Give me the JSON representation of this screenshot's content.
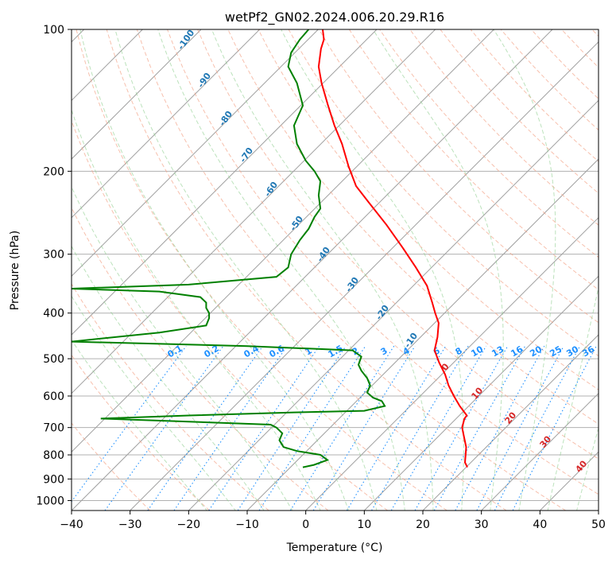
{
  "chart_data": {
    "type": "line",
    "title": "wetPf2_GN02.2024.006.20.29.R16",
    "xlabel": "Temperature (°C)",
    "ylabel": "Pressure (hPa)",
    "xlim": [
      -40,
      50
    ],
    "ylim": [
      1050,
      100
    ],
    "y_scale": "log",
    "x_ticks": [
      -40,
      -30,
      -20,
      -10,
      0,
      10,
      20,
      30,
      40,
      50
    ],
    "y_ticks": [
      100,
      200,
      300,
      400,
      500,
      600,
      700,
      800,
      900,
      1000
    ],
    "grid": true,
    "series": [
      {
        "color": "#ff0000",
        "points": [
          [
            27.6,
            850
          ],
          [
            27.2,
            830
          ],
          [
            27.3,
            800
          ],
          [
            27.4,
            770
          ],
          [
            27.0,
            730
          ],
          [
            26.7,
            700
          ],
          [
            27.1,
            670
          ],
          [
            27.5,
            660
          ],
          [
            26.3,
            630
          ],
          [
            25.3,
            600
          ],
          [
            24.4,
            570
          ],
          [
            23.8,
            540
          ],
          [
            22.8,
            510
          ],
          [
            22.0,
            480
          ],
          [
            22.5,
            450
          ],
          [
            22.7,
            420
          ],
          [
            22.1,
            400
          ],
          [
            21.6,
            380
          ],
          [
            20.7,
            350
          ],
          [
            18.8,
            320
          ],
          [
            16.5,
            290
          ],
          [
            13.8,
            260
          ],
          [
            11.0,
            235
          ],
          [
            8.6,
            215
          ],
          [
            7.3,
            195
          ],
          [
            6.2,
            175
          ],
          [
            4.9,
            160
          ],
          [
            3.8,
            145
          ],
          [
            2.7,
            130
          ],
          [
            2.2,
            120
          ],
          [
            2.6,
            110
          ],
          [
            3.1,
            105
          ],
          [
            2.9,
            100
          ]
        ],
        "kind": "temperature"
      },
      {
        "color": "#008000",
        "points": [
          [
            -0.5,
            850
          ],
          [
            1.4,
            840
          ],
          [
            3.7,
            820
          ],
          [
            2.5,
            800
          ],
          [
            -1.5,
            785
          ],
          [
            -3.8,
            770
          ],
          [
            -4.5,
            745
          ],
          [
            -4.0,
            720
          ],
          [
            -5.0,
            700
          ],
          [
            -6.0,
            690
          ],
          [
            -20.0,
            680
          ],
          [
            -35.0,
            670
          ],
          [
            -20.0,
            660
          ],
          [
            -2.0,
            650
          ],
          [
            10.0,
            645
          ],
          [
            13.5,
            630
          ],
          [
            13.0,
            615
          ],
          [
            11.5,
            605
          ],
          [
            10.5,
            590
          ],
          [
            11.0,
            570
          ],
          [
            10.5,
            550
          ],
          [
            9.5,
            530
          ],
          [
            9.0,
            515
          ],
          [
            9.5,
            495
          ],
          [
            8.0,
            480
          ],
          [
            -10.0,
            470
          ],
          [
            -40.0,
            460
          ],
          [
            -25.0,
            440
          ],
          [
            -17.0,
            425
          ],
          [
            -16.5,
            410
          ],
          [
            -16.5,
            400
          ],
          [
            -17.0,
            390
          ],
          [
            -17.0,
            380
          ],
          [
            -18.0,
            370
          ],
          [
            -25.0,
            360
          ],
          [
            -40.0,
            355
          ],
          [
            -20.0,
            348
          ],
          [
            -5.0,
            335
          ],
          [
            -3.0,
            320
          ],
          [
            -2.5,
            300
          ],
          [
            -1.0,
            280
          ],
          [
            0.5,
            265
          ],
          [
            1.5,
            250
          ],
          [
            2.5,
            240
          ],
          [
            2.2,
            225
          ],
          [
            2.5,
            210
          ],
          [
            1.5,
            200
          ],
          [
            0.0,
            190
          ],
          [
            -1.5,
            175
          ],
          [
            -2.0,
            160
          ],
          [
            -0.5,
            145
          ],
          [
            -1.5,
            130
          ],
          [
            -3.0,
            120
          ],
          [
            -2.5,
            112
          ],
          [
            -1.0,
            105
          ],
          [
            0.5,
            100
          ]
        ],
        "kind": "dewpoint"
      }
    ],
    "dry_adiabat_labels": [
      "-100",
      "-90",
      "-80",
      "-70",
      "-60",
      "-50",
      "-40",
      "-30",
      "-20",
      "-10"
    ],
    "moist_adiabat_labels": [
      "0",
      "10",
      "20",
      "30",
      "40"
    ],
    "mixing_ratio_labels": [
      "0.1",
      "0.2",
      "0.4",
      "0.6",
      "1",
      "1.5",
      "2",
      "3",
      "4",
      "6",
      "8",
      "10",
      "13",
      "16",
      "20",
      "25",
      "30",
      "36"
    ]
  }
}
